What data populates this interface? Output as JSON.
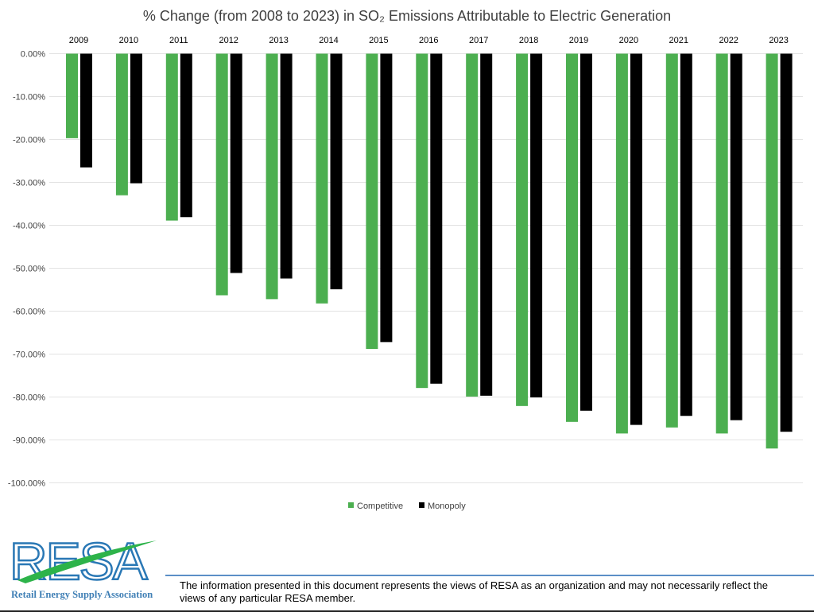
{
  "chart_data": {
    "type": "bar",
    "title": "% Change (from 2008 to 2023) in SO₂ Emissions Attributable to Electric Generation",
    "categories": [
      "2009",
      "2010",
      "2011",
      "2012",
      "2013",
      "2014",
      "2015",
      "2016",
      "2017",
      "2018",
      "2019",
      "2020",
      "2021",
      "2022",
      "2023"
    ],
    "series": [
      {
        "name": "Competitive",
        "color": "#4caf50",
        "values": [
          -19.7,
          -33.0,
          -38.9,
          -56.3,
          -57.2,
          -58.2,
          -68.8,
          -77.9,
          -79.9,
          -82.1,
          -85.8,
          -88.5,
          -87.1,
          -88.5,
          -92.0
        ]
      },
      {
        "name": "Monopoly",
        "color": "#000000",
        "values": [
          -26.5,
          -30.2,
          -38.1,
          -51.1,
          -52.4,
          -54.9,
          -67.2,
          -76.9,
          -79.7,
          -80.1,
          -83.2,
          -86.5,
          -84.4,
          -85.4,
          -88.1
        ]
      }
    ],
    "yticks": [
      "0.00%",
      "-10.00%",
      "-20.00%",
      "-30.00%",
      "-40.00%",
      "-50.00%",
      "-60.00%",
      "-70.00%",
      "-80.00%",
      "-90.00%",
      "-100.00%"
    ],
    "ylim": [
      -100,
      0
    ],
    "grid": true,
    "legend": "bottom-center",
    "xaxis_position": "top"
  },
  "logo": {
    "text": "RESA",
    "subtitle": "Retail Energy Supply Association"
  },
  "disclaimer": "The information presented in this document represents the views of RESA as an organization and may not necessarily reflect the views of any particular RESA member."
}
